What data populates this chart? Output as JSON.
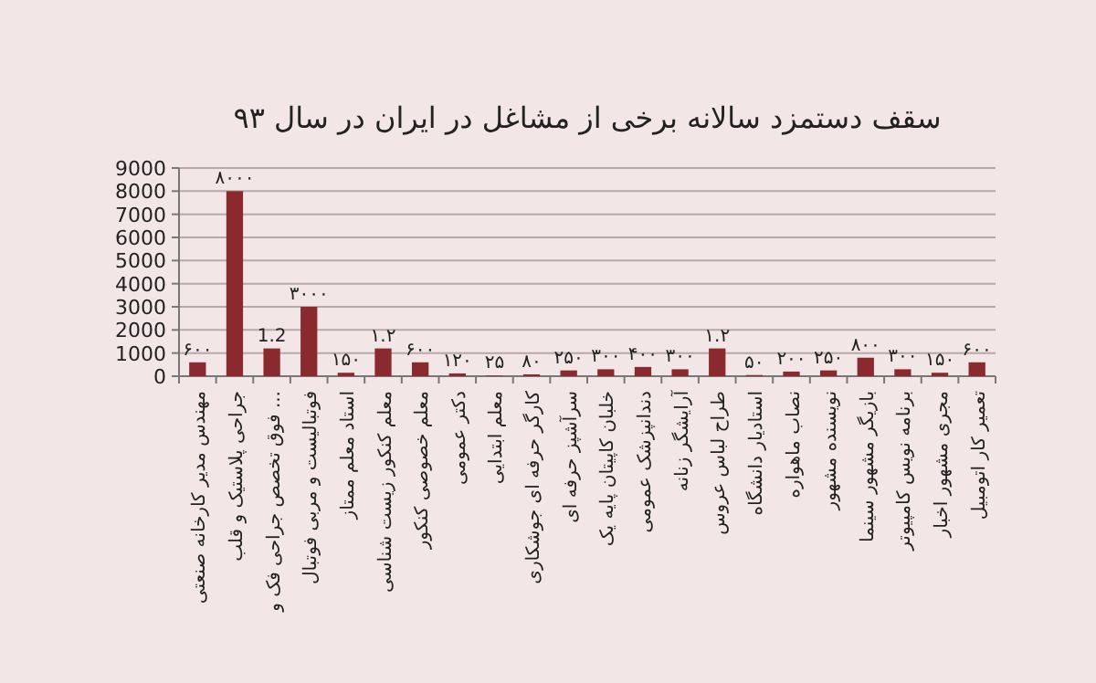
{
  "chart_data": {
    "type": "bar",
    "title": "سقف دستمزد سالانه برخی از مشاغل در ایران در سال ۹۳",
    "categories": [
      "مهندس مدیر کارخانه صنعتی",
      "جراحی پلاستیک و قلب",
      "فوق تخصص جراحی فک و ...",
      "فوتبالیست و مربی فوتبال",
      "استاد معلم ممتاز",
      "معلم کنکور زیست شناسی",
      "معلم خصوصی کنکور",
      "دکتر عمومی",
      "معلم ابتدایی",
      "کارگر حرفه ای جوشکاری",
      "سرآشپز حرفه ای",
      "خلبان کاپیتان پایه یک",
      "دندانپزشک عمومی",
      "آرایشگر زنانه",
      "طراح لباس عروس",
      "استادیار دانشگاه",
      "نصاب ماهواره",
      "نویسنده مشهور",
      "بازیگر مشهور سینما",
      "برنامه نویس کامپیوتر",
      "مجری مشهور اخبار",
      "تعمیر کار اتومبیل"
    ],
    "values": [
      600,
      8000,
      1200,
      3000,
      150,
      1200,
      600,
      120,
      25,
      80,
      250,
      300,
      400,
      300,
      1200,
      50,
      200,
      250,
      800,
      300,
      150,
      600
    ],
    "value_labels": [
      "۶۰۰",
      "۸۰۰۰",
      null,
      "۳۰۰۰",
      "۱۵۰",
      null,
      "۶۰۰",
      "۱۲۰",
      "۲۵",
      "۸۰",
      "۲۵۰",
      "۳۰۰",
      "۴۰۰",
      "۳۰۰",
      null,
      "۵۰",
      "۲۰۰",
      "۲۵۰",
      "۸۰۰",
      "۳۰۰",
      "۱۵۰",
      "۶۰۰"
    ],
    "annotations": [
      {
        "text": "1.2",
        "x": "فوق تخصص جراحی فک و ...",
        "y": 1200
      },
      {
        "text": "۱.۲",
        "x": "معلم کنکور زیست شناسی",
        "y": 1200
      },
      {
        "text": "۱.۲",
        "x": "طراح لباس عروس",
        "y": 1200
      }
    ],
    "color": "#8b2a2e",
    "ylim": [
      0,
      9000
    ],
    "yticks": [
      0,
      1000,
      2000,
      3000,
      4000,
      5000,
      6000,
      7000,
      8000,
      9000
    ],
    "grid": "y"
  }
}
